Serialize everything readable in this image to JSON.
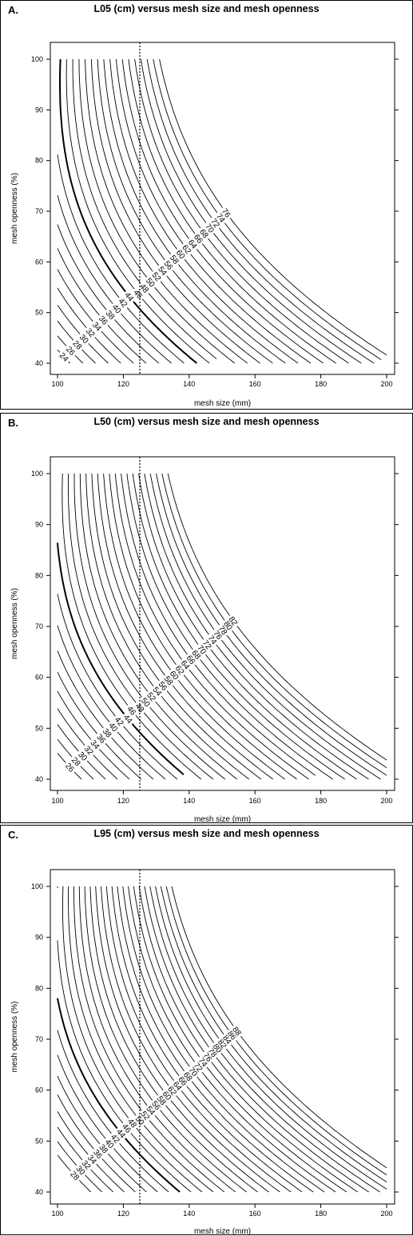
{
  "chart_data": [
    {
      "type": "contour",
      "panel_label": "A.",
      "title": "L05 (cm) versus mesh size and mesh openness",
      "xlabel": "mesh size (mm)",
      "ylabel": "mesh openness (%)",
      "xlim": [
        100,
        200
      ],
      "ylim": [
        40,
        100
      ],
      "xticks": [
        100,
        120,
        140,
        160,
        180,
        200
      ],
      "yticks": [
        40,
        50,
        60,
        70,
        80,
        90,
        100
      ],
      "reference_line_x": 125,
      "highlight_level": 44,
      "levels": [
        24,
        26,
        28,
        30,
        32,
        34,
        36,
        38,
        40,
        42,
        44,
        46,
        48,
        50,
        52,
        54,
        56,
        58,
        60,
        62,
        64,
        66,
        68,
        70,
        72,
        74,
        76
      ],
      "labeled_levels": [
        24,
        26,
        28,
        30,
        32,
        34,
        36,
        38,
        40,
        42,
        44,
        46,
        48,
        50,
        52,
        54,
        56,
        58,
        60,
        62,
        64,
        66,
        68,
        70,
        72,
        74,
        76
      ],
      "model": {
        "base": 44,
        "slope": 0.4,
        "angle": 2.2,
        "cx": 100,
        "cy": 40,
        "sx": 100,
        "sy": 60
      }
    },
    {
      "type": "contour",
      "panel_label": "B.",
      "title": "L50 (cm) versus mesh size and mesh openness",
      "xlabel": "mesh size (mm)",
      "ylabel": "mesh openness (%)",
      "xlim": [
        100,
        200
      ],
      "ylim": [
        40,
        100
      ],
      "xticks": [
        100,
        120,
        140,
        160,
        180,
        200
      ],
      "yticks": [
        40,
        50,
        60,
        70,
        80,
        90,
        100
      ],
      "reference_line_x": 125,
      "highlight_level": 44,
      "levels": [
        26,
        28,
        30,
        32,
        34,
        36,
        38,
        40,
        42,
        44,
        46,
        48,
        50,
        52,
        54,
        56,
        58,
        60,
        62,
        64,
        66,
        68,
        70,
        72,
        74,
        76,
        78,
        80,
        82
      ],
      "labeled_levels": [
        26,
        28,
        30,
        32,
        34,
        36,
        38,
        40,
        42,
        44,
        46,
        48,
        50,
        52,
        54,
        56,
        58,
        60,
        62,
        64,
        66,
        68,
        70,
        72,
        74,
        76,
        78,
        80,
        82
      ],
      "model": {
        "base": 44,
        "slope": 0.45,
        "angle": 2.15,
        "cx": 100,
        "cy": 40,
        "sx": 100,
        "sy": 60
      }
    },
    {
      "type": "contour",
      "panel_label": "C.",
      "title": "L95 (cm) versus mesh size and mesh openness",
      "xlabel": "mesh size (mm)",
      "ylabel": "mesh openness (%)",
      "xlim": [
        100,
        200
      ],
      "ylim": [
        40,
        100
      ],
      "xticks": [
        100,
        120,
        140,
        160,
        180,
        200
      ],
      "yticks": [
        40,
        50,
        60,
        70,
        80,
        90,
        100
      ],
      "reference_line_x": 125,
      "highlight_level": 44,
      "levels": [
        28,
        30,
        32,
        34,
        36,
        38,
        40,
        42,
        44,
        46,
        48,
        50,
        52,
        54,
        56,
        58,
        60,
        62,
        64,
        66,
        68,
        70,
        72,
        74,
        76,
        78,
        80,
        82,
        84,
        86,
        88
      ],
      "labeled_levels": [
        28,
        30,
        32,
        34,
        36,
        38,
        40,
        42,
        44,
        46,
        48,
        50,
        52,
        54,
        56,
        58,
        60,
        62,
        64,
        66,
        68,
        70,
        72,
        74,
        76,
        78,
        80,
        82,
        84,
        86,
        88
      ],
      "model": {
        "base": 44,
        "slope": 0.52,
        "angle": 2.1,
        "cx": 100,
        "cy": 40,
        "sx": 100,
        "sy": 60
      }
    }
  ]
}
